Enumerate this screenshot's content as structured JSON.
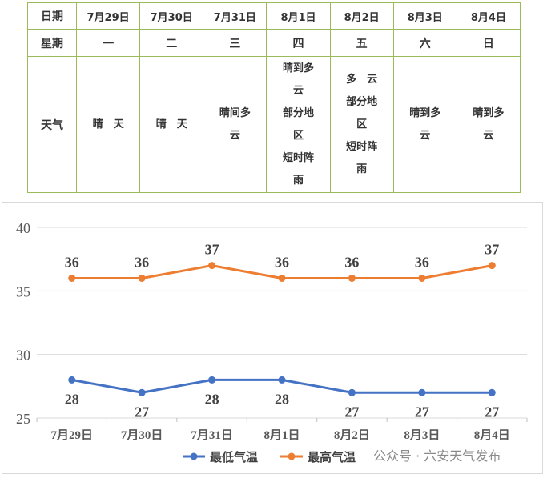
{
  "table": {
    "date_header": "日期",
    "weekday_header": "星期",
    "weather_header": "天气",
    "dates": [
      "7月29日",
      "7月30日",
      "7月31日",
      "8月1日",
      "8月2日",
      "8月3日",
      "8月4日"
    ],
    "weekdays": [
      "一",
      "二",
      "三",
      "四",
      "五",
      "六",
      "日"
    ],
    "weather": [
      [
        "晴　天"
      ],
      [
        "晴　天"
      ],
      [
        "晴间多",
        "云"
      ],
      [
        "晴到多",
        "云",
        "部分地",
        "区",
        "短时阵",
        "雨"
      ],
      [
        "多　云",
        "部分地",
        "区",
        "短时阵",
        "雨"
      ],
      [
        "晴到多",
        "云"
      ],
      [
        "晴到多",
        "云"
      ]
    ]
  },
  "chart_data": {
    "type": "line",
    "categories": [
      "7月29日",
      "7月30日",
      "7月31日",
      "8月1日",
      "8月2日",
      "8月3日",
      "8月4日"
    ],
    "series": [
      {
        "name": "最低气温",
        "values": [
          28,
          27,
          28,
          28,
          27,
          27,
          27
        ],
        "color": "#4472c4",
        "label_pos": "below"
      },
      {
        "name": "最高气温",
        "values": [
          36,
          36,
          37,
          36,
          36,
          36,
          37
        ],
        "color": "#ed7d31",
        "label_pos": "above"
      }
    ],
    "ylim": [
      25,
      40
    ],
    "yticks": [
      25,
      30,
      35,
      40
    ],
    "grid": true,
    "legend": "bottom"
  },
  "watermark": "公众号 · 六安天气发布"
}
